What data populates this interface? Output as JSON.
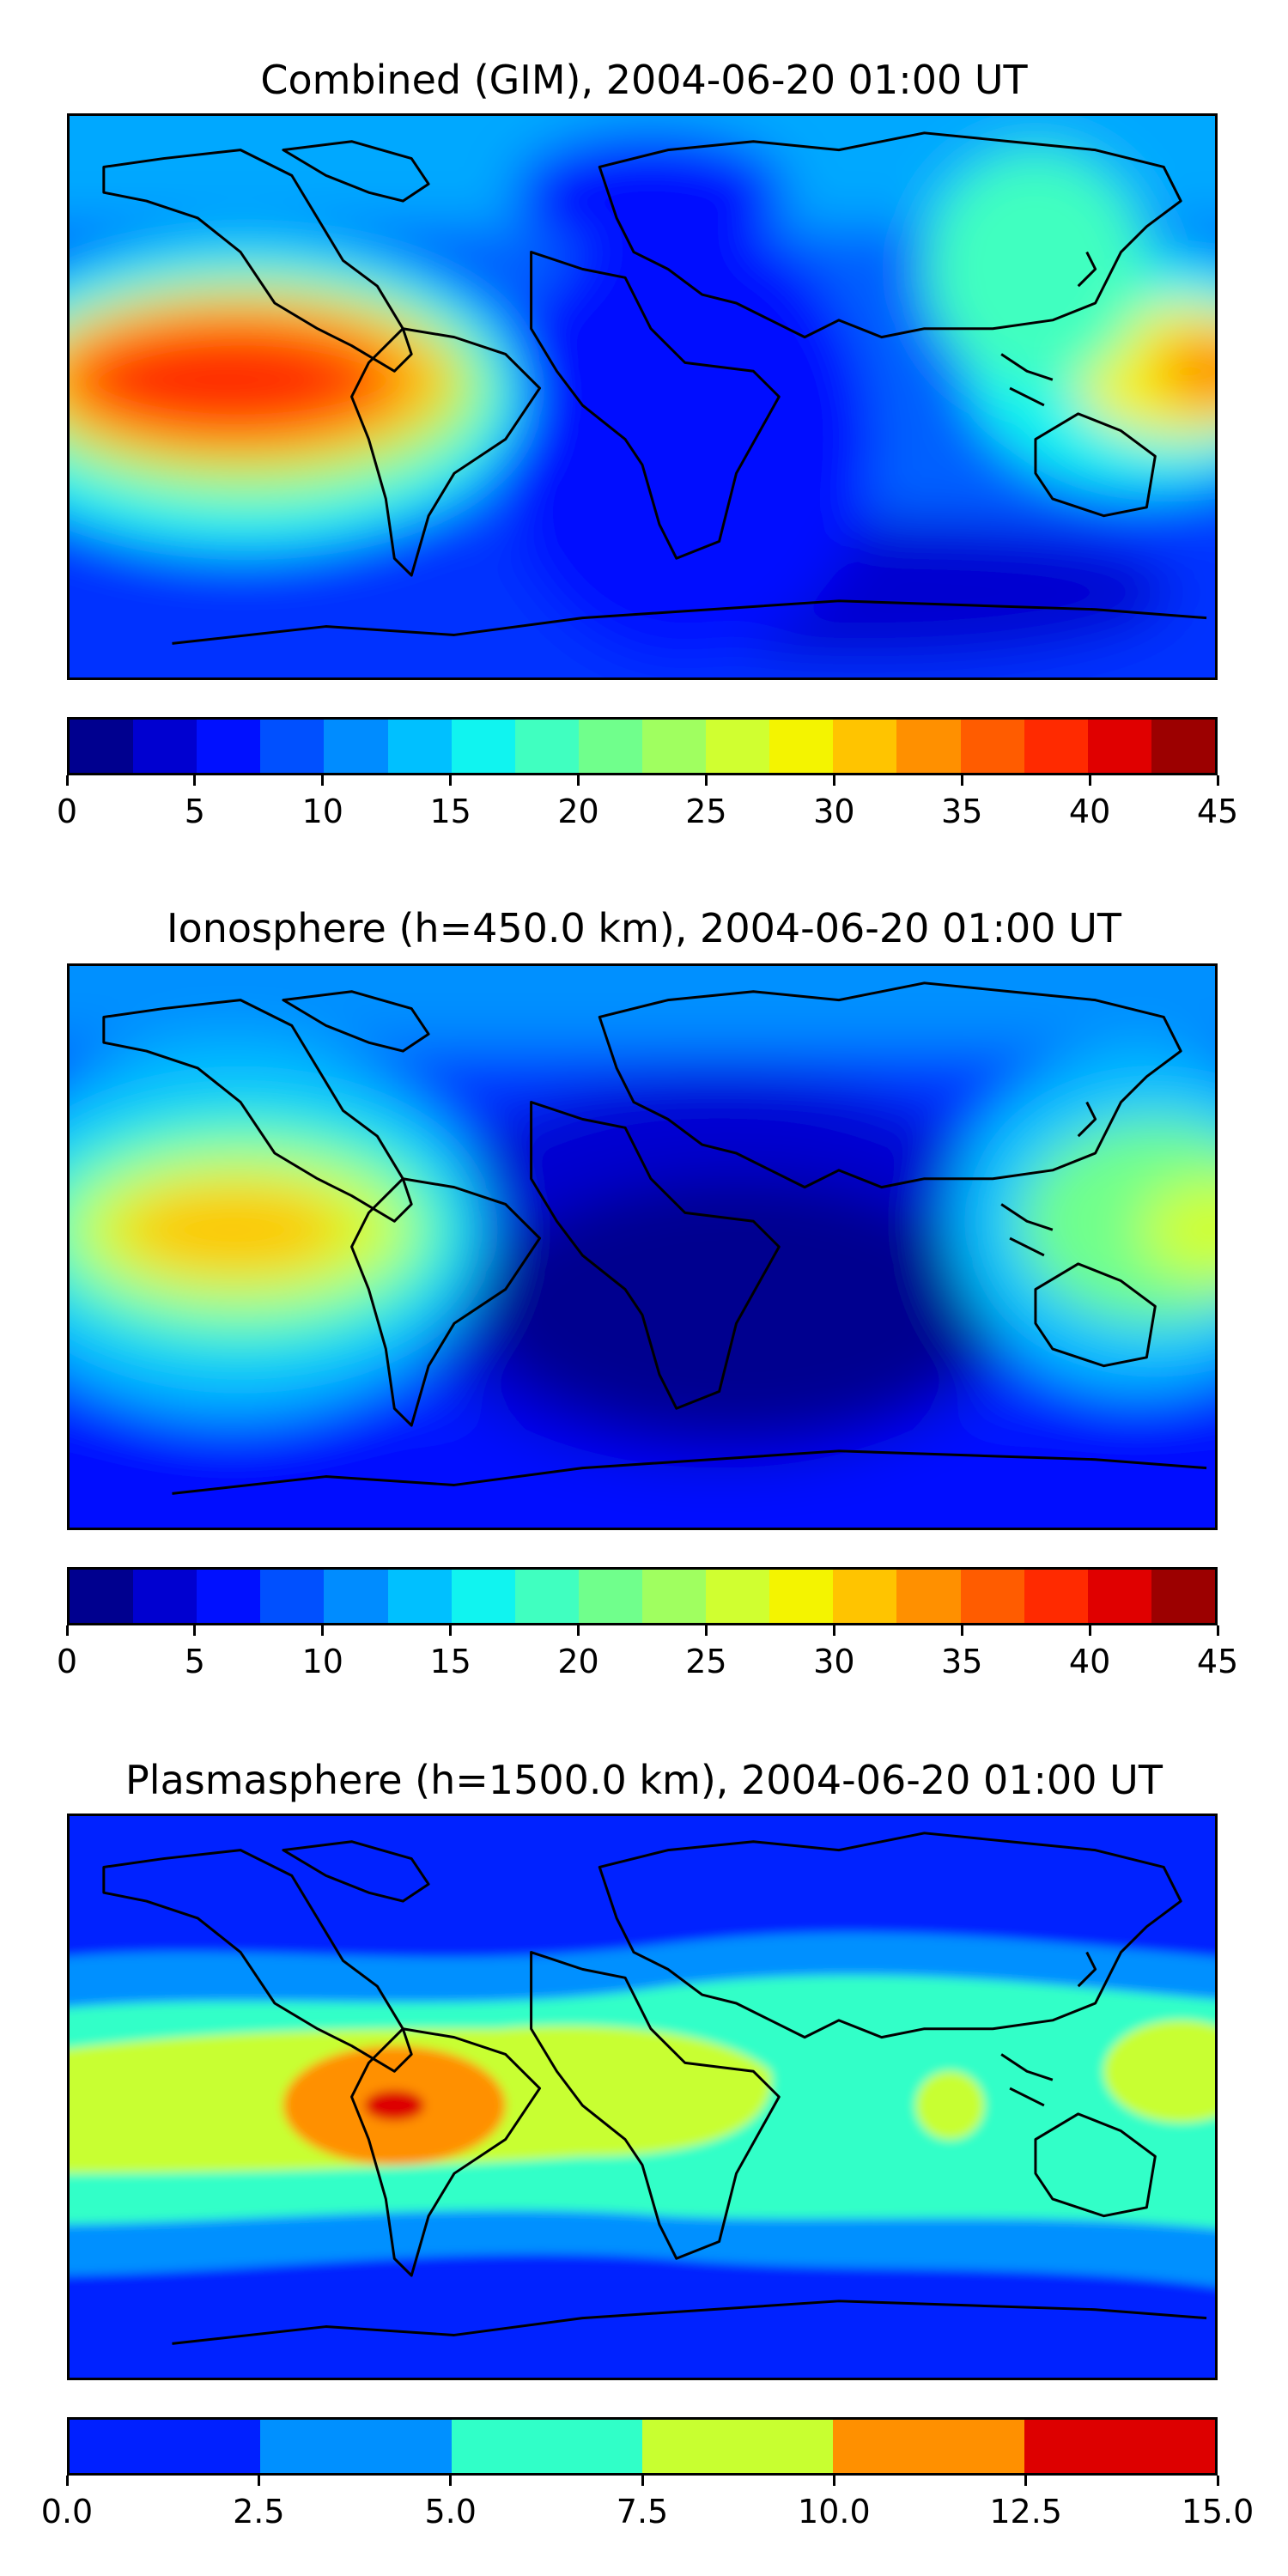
{
  "chart_data": [
    {
      "type": "heatmap",
      "title": "Combined (GIM), 2004-06-20 01:00 UT",
      "xlabel": "",
      "ylabel": "",
      "colorbar": {
        "levels": [
          0,
          2.5,
          5,
          7.5,
          10,
          12.5,
          15,
          17.5,
          20,
          22.5,
          25,
          27.5,
          30,
          32.5,
          35,
          37.5,
          40,
          42.5,
          45
        ],
        "ticks": [
          "0",
          "5",
          "10",
          "15",
          "20",
          "25",
          "30",
          "35",
          "40",
          "45"
        ],
        "tick_values": [
          0,
          5,
          10,
          15,
          20,
          25,
          30,
          35,
          40,
          45
        ],
        "colors": [
          "#00008f",
          "#0000d0",
          "#0010ff",
          "#0050ff",
          "#008cff",
          "#00c0ff",
          "#10f4f0",
          "#40ffc0",
          "#70ff8c",
          "#a0ff60",
          "#d0ff30",
          "#f4f400",
          "#ffc400",
          "#ff9000",
          "#ff5c00",
          "#ff2a00",
          "#e00000",
          "#9c0000"
        ],
        "range": [
          0,
          45
        ]
      }
    },
    {
      "type": "heatmap",
      "title": "Ionosphere  (h=450.0 km), 2004-06-20 01:00 UT",
      "xlabel": "",
      "ylabel": "",
      "colorbar": {
        "levels": [
          0,
          2.5,
          5,
          7.5,
          10,
          12.5,
          15,
          17.5,
          20,
          22.5,
          25,
          27.5,
          30,
          32.5,
          35,
          37.5,
          40,
          42.5,
          45
        ],
        "ticks": [
          "0",
          "5",
          "10",
          "15",
          "20",
          "25",
          "30",
          "35",
          "40",
          "45"
        ],
        "tick_values": [
          0,
          5,
          10,
          15,
          20,
          25,
          30,
          35,
          40,
          45
        ],
        "colors": [
          "#00008f",
          "#0000d0",
          "#0010ff",
          "#0050ff",
          "#008cff",
          "#00c0ff",
          "#10f4f0",
          "#40ffc0",
          "#70ff8c",
          "#a0ff60",
          "#d0ff30",
          "#f4f400",
          "#ffc400",
          "#ff9000",
          "#ff5c00",
          "#ff2a00",
          "#e00000",
          "#9c0000"
        ],
        "range": [
          0,
          45
        ]
      }
    },
    {
      "type": "heatmap",
      "title": "Plasmasphere (h=1500.0 km), 2004-06-20 01:00 UT",
      "xlabel": "",
      "ylabel": "",
      "colorbar": {
        "levels": [
          0,
          2.5,
          5,
          7.5,
          10,
          12.5,
          15
        ],
        "ticks": [
          "0.0",
          "2.5",
          "5.0",
          "7.5",
          "10.0",
          "12.5",
          "15.0"
        ],
        "tick_values": [
          0,
          2.5,
          5,
          7.5,
          10,
          12.5,
          15
        ],
        "colors": [
          "#0020ff",
          "#0090ff",
          "#30ffc8",
          "#c8ff30",
          "#ff9000",
          "#dd0000"
        ],
        "range": [
          0,
          15
        ]
      }
    }
  ]
}
